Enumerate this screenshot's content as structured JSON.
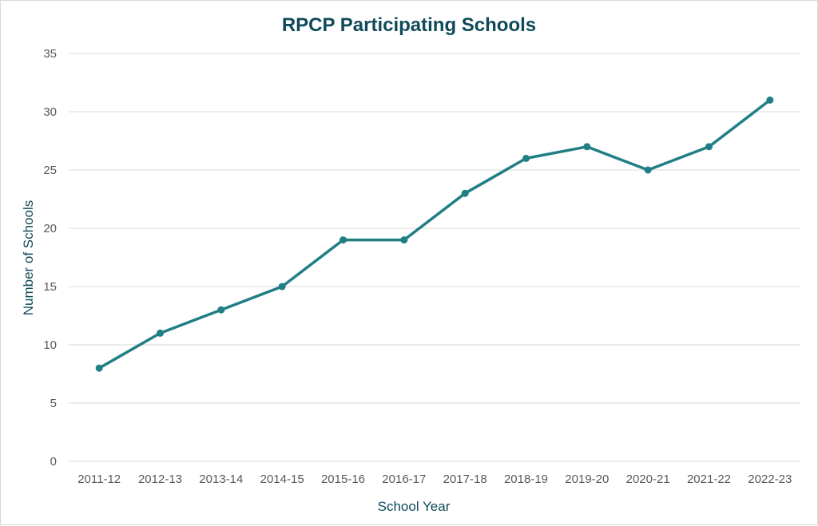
{
  "chart_data": {
    "type": "line",
    "title": "RPCP Participating Schools",
    "xlabel": "School Year",
    "ylabel": "Number of Schools",
    "categories": [
      "2011-12",
      "2012-13",
      "2013-14",
      "2014-15",
      "2015-16",
      "2016-17",
      "2017-18",
      "2018-19",
      "2019-20",
      "2020-21",
      "2021-22",
      "2022-23"
    ],
    "series": [
      {
        "values": [
          8,
          11,
          13,
          15,
          19,
          19,
          23,
          26,
          27,
          25,
          27,
          31
        ],
        "color": "#1f7f85"
      }
    ],
    "ylim": [
      0,
      35
    ],
    "yticks": [
      0,
      5,
      10,
      15,
      20,
      25,
      30,
      35
    ],
    "grid": true,
    "legend": "none",
    "markers": true
  }
}
